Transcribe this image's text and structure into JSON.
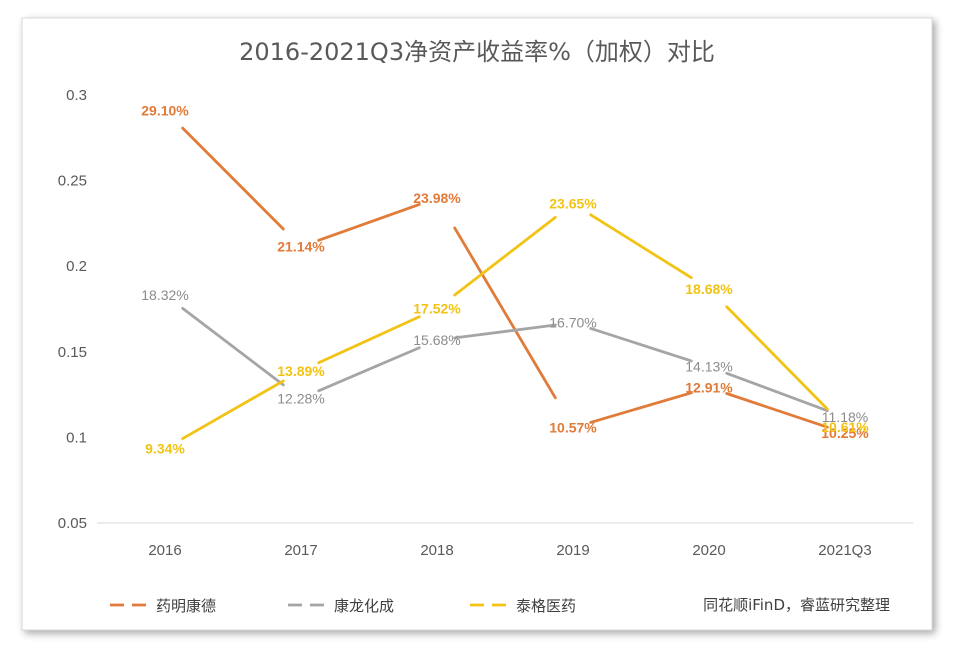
{
  "chart_data": {
    "type": "line",
    "title": "2016-2021Q3净资产收益率%（加权）对比",
    "categories": [
      "2016",
      "2017",
      "2018",
      "2019",
      "2020",
      "2021Q3"
    ],
    "yticks": [
      "0.05",
      "0.1",
      "0.15",
      "0.2",
      "0.25",
      "0.3"
    ],
    "ylim": [
      0.05,
      0.3
    ],
    "grid": false,
    "legend_position": "bottom",
    "series": [
      {
        "name": "药明康德",
        "color": "#E07B39",
        "values": [
          0.291,
          0.2114,
          0.2398,
          0.1057,
          0.1291,
          0.1025
        ],
        "labels": [
          "29.10%",
          "21.14%",
          "23.98%",
          "10.57%",
          "12.91%",
          "10.25%"
        ]
      },
      {
        "name": "康龙化成",
        "color": "#A5A5A5",
        "values": [
          0.1832,
          0.1228,
          0.1568,
          0.167,
          0.1413,
          0.1118
        ],
        "labels": [
          "18.32%",
          "12.28%",
          "15.68%",
          "16.70%",
          "14.13%",
          "11.18%"
        ]
      },
      {
        "name": "泰格医药",
        "color": "#F2C314",
        "values": [
          0.0934,
          0.1389,
          0.1752,
          0.2365,
          0.1868,
          0.1061
        ],
        "labels": [
          "9.34%",
          "13.89%",
          "17.52%",
          "23.65%",
          "18.68%",
          "10.61%"
        ]
      }
    ]
  },
  "source_note": "同花顺iFinD，睿蓝研究整理"
}
